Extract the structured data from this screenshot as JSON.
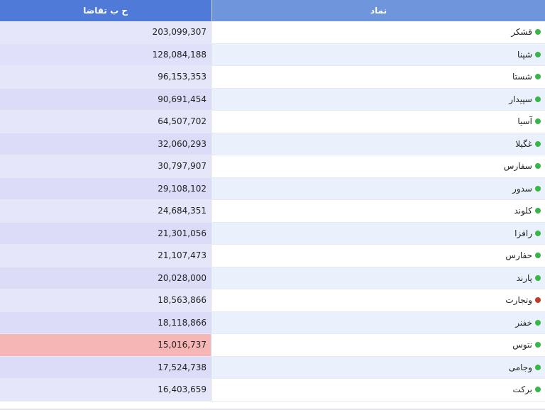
{
  "header": {
    "value_label": "ح ب تقاضا",
    "symbol_label": "نماد"
  },
  "colors": {
    "header_bg": "#6f96dc",
    "header_value_bg": "#4f7ad8",
    "dot_green": "#39b54a",
    "dot_red": "#c0392b",
    "highlight_red": "#f7b6b6"
  },
  "rows": [
    {
      "symbol": "قشکر",
      "value": "203,099,307",
      "status": "green",
      "value_bg": "#e6e6fb"
    },
    {
      "symbol": "شپنا",
      "value": "128,084,188",
      "status": "green",
      "value_bg": "#e0e0fa"
    },
    {
      "symbol": "شستا",
      "value": "96,153,353",
      "status": "green",
      "value_bg": "#e6e6fb"
    },
    {
      "symbol": "سپیدار",
      "value": "90,691,454",
      "status": "green",
      "value_bg": "#dcdcf8"
    },
    {
      "symbol": "آسیا",
      "value": "64,507,702",
      "status": "green",
      "value_bg": "#e6e6fb"
    },
    {
      "symbol": "غگیلا",
      "value": "32,060,293",
      "status": "green",
      "value_bg": "#dcdcf8"
    },
    {
      "symbol": "سفارس",
      "value": "30,797,907",
      "status": "green",
      "value_bg": "#e6e6fb"
    },
    {
      "symbol": "سدور",
      "value": "29,108,102",
      "status": "green",
      "value_bg": "#dcdcf8"
    },
    {
      "symbol": "کلوند",
      "value": "24,684,351",
      "status": "green",
      "value_bg": "#e6e6fb"
    },
    {
      "symbol": "رافزا",
      "value": "21,301,056",
      "status": "green",
      "value_bg": "#dcdcf8"
    },
    {
      "symbol": "حفارس",
      "value": "21,107,473",
      "status": "green",
      "value_bg": "#e6e6fb"
    },
    {
      "symbol": "پارند",
      "value": "20,028,000",
      "status": "green",
      "value_bg": "#dcdcf8"
    },
    {
      "symbol": "وتجارت",
      "value": "18,563,866",
      "status": "red",
      "value_bg": "#e6e6fb"
    },
    {
      "symbol": "خفنر",
      "value": "18,118,866",
      "status": "green",
      "value_bg": "#dcdcf8"
    },
    {
      "symbol": "نتوس",
      "value": "15,016,737",
      "status": "green",
      "value_bg": "#f7b6b6"
    },
    {
      "symbol": "وجامی",
      "value": "17,524,738",
      "status": "green",
      "value_bg": "#dcdcf8"
    },
    {
      "symbol": "برکت",
      "value": "16,403,659",
      "status": "green",
      "value_bg": "#e6e6fb"
    }
  ]
}
